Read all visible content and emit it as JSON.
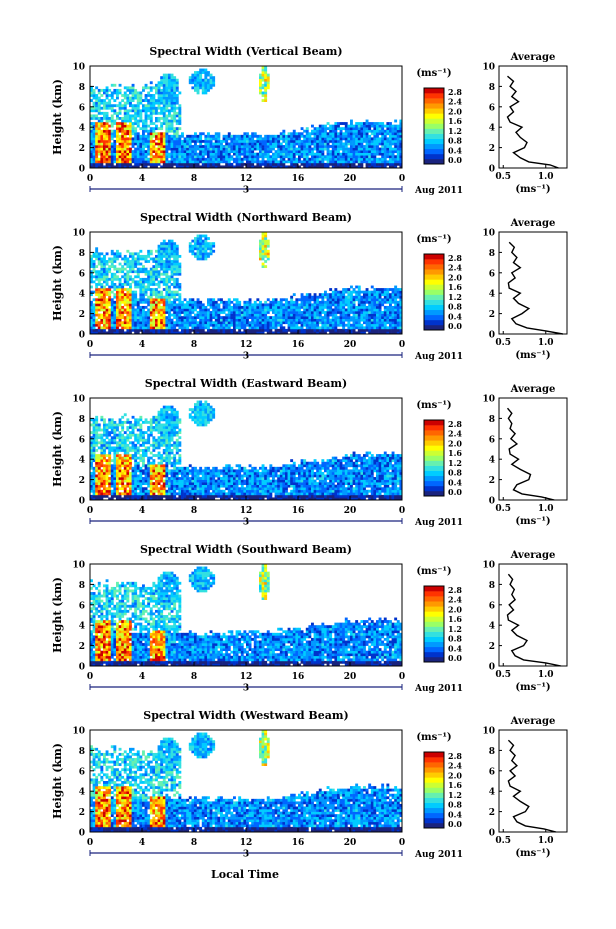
{
  "figure": {
    "x_axis_title": "Local Time",
    "date_label": "Aug 2011",
    "day_marker": "3",
    "avg_title": "Average",
    "unit_label": "(ms⁻¹)",
    "ylabel": "Height (km)"
  },
  "colorbar": {
    "ticks": [
      "0.0",
      "0.4",
      "0.8",
      "1.2",
      "1.6",
      "2.0",
      "2.4",
      "2.8"
    ],
    "colors": [
      "#1a237e",
      "#0033cc",
      "#0066ff",
      "#0099ff",
      "#00ccff",
      "#33e0e0",
      "#66f0b0",
      "#99ff66",
      "#ccff33",
      "#ffff00",
      "#ffcc00",
      "#ff9900",
      "#ff6600",
      "#ff3300",
      "#cc0000"
    ]
  },
  "chart_data": [
    {
      "type": "heatmap",
      "title": "Spectral Width (Vertical Beam)",
      "xlabel": "Local Time",
      "ylabel": "Height (km)",
      "xticks": [
        "0",
        "4",
        "8",
        "12",
        "16",
        "20",
        "0"
      ],
      "xlim": [
        0,
        24
      ],
      "yticks": [
        "0",
        "2",
        "4",
        "6",
        "8",
        "10"
      ],
      "ylim": [
        0,
        10
      ],
      "colorbar": {
        "label": "(ms⁻¹)",
        "range": [
          0.0,
          2.8
        ]
      },
      "average_profile": {
        "title": "Average",
        "xlabel": "(ms⁻¹)",
        "xticks": [
          "0.5",
          "1.0"
        ],
        "xlim": [
          0.45,
          1.25
        ],
        "y": [
          0,
          0.3,
          0.6,
          1.0,
          1.5,
          2.0,
          2.5,
          3.0,
          3.5,
          4.0,
          4.5,
          5.0,
          5.5,
          6.0,
          6.5,
          7.0,
          7.5,
          8.0,
          8.5,
          9.0
        ],
        "x": [
          1.15,
          1.05,
          0.8,
          0.7,
          0.62,
          0.75,
          0.78,
          0.7,
          0.65,
          0.72,
          0.58,
          0.55,
          0.62,
          0.58,
          0.68,
          0.6,
          0.65,
          0.58,
          0.62,
          0.55
        ]
      }
    },
    {
      "type": "heatmap",
      "title": "Spectral Width (Northward Beam)",
      "xlabel": "Local Time",
      "ylabel": "Height (km)",
      "xticks": [
        "0",
        "4",
        "8",
        "12",
        "16",
        "20",
        "0"
      ],
      "xlim": [
        0,
        24
      ],
      "yticks": [
        "0",
        "2",
        "4",
        "6",
        "8",
        "10"
      ],
      "ylim": [
        0,
        10
      ],
      "colorbar": {
        "label": "(ms⁻¹)",
        "range": [
          0.0,
          2.8
        ]
      },
      "average_profile": {
        "title": "Average",
        "xlabel": "(ms⁻¹)",
        "xticks": [
          "0.5",
          "1.0"
        ],
        "xlim": [
          0.45,
          1.25
        ],
        "y": [
          0,
          0.3,
          0.6,
          1.0,
          1.5,
          2.0,
          2.5,
          3.0,
          3.5,
          4.0,
          4.5,
          5.0,
          5.5,
          6.0,
          6.5,
          7.0,
          7.5,
          8.0,
          8.5,
          9.0
        ],
        "x": [
          1.2,
          1.0,
          0.78,
          0.65,
          0.6,
          0.72,
          0.8,
          0.68,
          0.62,
          0.7,
          0.57,
          0.56,
          0.64,
          0.6,
          0.7,
          0.62,
          0.66,
          0.6,
          0.63,
          0.57
        ]
      }
    },
    {
      "type": "heatmap",
      "title": "Spectral Width (Eastward Beam)",
      "xlabel": "Local Time",
      "ylabel": "Height (km)",
      "xticks": [
        "0",
        "4",
        "8",
        "12",
        "16",
        "20",
        "0"
      ],
      "xlim": [
        0,
        24
      ],
      "yticks": [
        "0",
        "2",
        "4",
        "6",
        "8",
        "10"
      ],
      "ylim": [
        0,
        10
      ],
      "colorbar": {
        "label": "(ms⁻¹)",
        "range": [
          0.0,
          2.8
        ]
      },
      "average_profile": {
        "title": "Average",
        "xlabel": "(ms⁻¹)",
        "xticks": [
          "0.5",
          "1.0"
        ],
        "xlim": [
          0.45,
          1.25
        ],
        "y": [
          0,
          0.3,
          0.6,
          1.0,
          1.5,
          2.0,
          2.5,
          3.0,
          3.5,
          4.0,
          4.5,
          5.0,
          5.5,
          6.0,
          6.5,
          7.0,
          7.5,
          8.0,
          8.5,
          9.0
        ],
        "x": [
          1.1,
          0.95,
          0.72,
          0.62,
          0.66,
          0.8,
          0.82,
          0.7,
          0.6,
          0.68,
          0.58,
          0.57,
          0.66,
          0.59,
          0.64,
          0.58,
          0.6,
          0.56,
          0.6,
          0.55
        ]
      }
    },
    {
      "type": "heatmap",
      "title": "Spectral Width (Southward Beam)",
      "xlabel": "Local Time",
      "ylabel": "Height (km)",
      "xticks": [
        "0",
        "4",
        "8",
        "12",
        "16",
        "20",
        "0"
      ],
      "xlim": [
        0,
        24
      ],
      "yticks": [
        "0",
        "2",
        "4",
        "6",
        "8",
        "10"
      ],
      "ylim": [
        0,
        10
      ],
      "colorbar": {
        "label": "(ms⁻¹)",
        "range": [
          0.0,
          2.8
        ]
      },
      "average_profile": {
        "title": "Average",
        "xlabel": "(ms⁻¹)",
        "xticks": [
          "0.5",
          "1.0"
        ],
        "xlim": [
          0.45,
          1.25
        ],
        "y": [
          0,
          0.3,
          0.6,
          1.0,
          1.5,
          2.0,
          2.5,
          3.0,
          3.5,
          4.0,
          4.5,
          5.0,
          5.5,
          6.0,
          6.5,
          7.0,
          7.5,
          8.0,
          8.5,
          9.0
        ],
        "x": [
          1.18,
          1.0,
          0.74,
          0.64,
          0.6,
          0.74,
          0.78,
          0.66,
          0.6,
          0.68,
          0.56,
          0.55,
          0.62,
          0.57,
          0.64,
          0.6,
          0.63,
          0.58,
          0.61,
          0.56
        ]
      }
    },
    {
      "type": "heatmap",
      "title": "Spectral Width (Westward Beam)",
      "xlabel": "Local Time",
      "ylabel": "Height (km)",
      "xticks": [
        "0",
        "4",
        "8",
        "12",
        "16",
        "20",
        "0"
      ],
      "xlim": [
        0,
        24
      ],
      "yticks": [
        "0",
        "2",
        "4",
        "6",
        "8",
        "10"
      ],
      "ylim": [
        0,
        10
      ],
      "colorbar": {
        "label": "(ms⁻¹)",
        "range": [
          0.0,
          2.8
        ]
      },
      "average_profile": {
        "title": "Average",
        "xlabel": "(ms⁻¹)",
        "xticks": [
          "0.5",
          "1.0"
        ],
        "xlim": [
          0.45,
          1.25
        ],
        "y": [
          0,
          0.3,
          0.6,
          1.0,
          1.5,
          2.0,
          2.5,
          3.0,
          3.5,
          4.0,
          4.5,
          5.0,
          5.5,
          6.0,
          6.5,
          7.0,
          7.5,
          8.0,
          8.5,
          9.0
        ],
        "x": [
          1.12,
          0.98,
          0.76,
          0.66,
          0.62,
          0.76,
          0.8,
          0.7,
          0.62,
          0.7,
          0.58,
          0.56,
          0.64,
          0.58,
          0.66,
          0.6,
          0.64,
          0.58,
          0.62,
          0.56
        ]
      }
    }
  ]
}
